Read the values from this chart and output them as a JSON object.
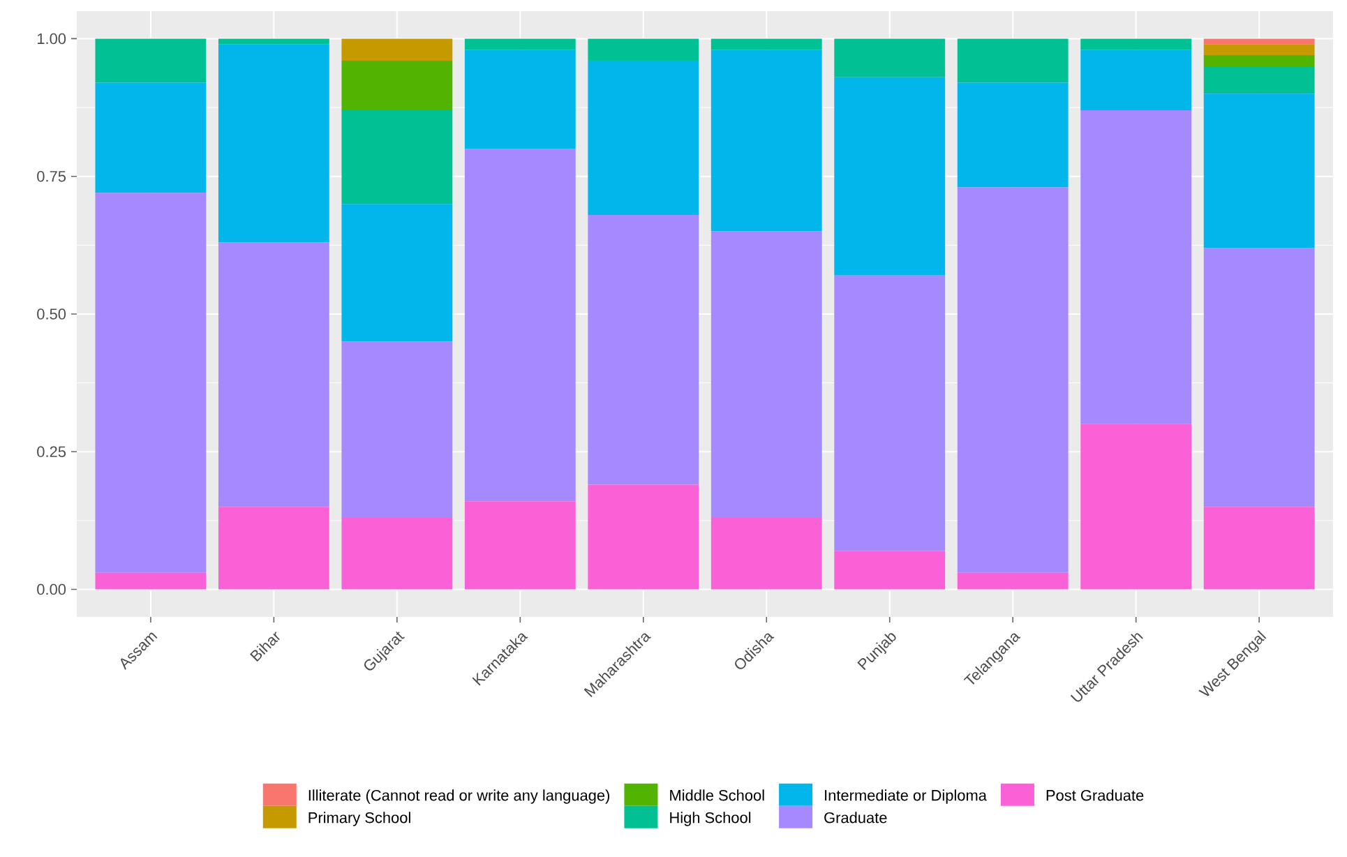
{
  "chart_data": {
    "type": "bar",
    "stacked": true,
    "categories": [
      "Assam",
      "Bihar",
      "Gujarat",
      "Karnataka",
      "Maharashtra",
      "Odisha",
      "Punjab",
      "Telangana",
      "Uttar Pradesh",
      "West Bengal"
    ],
    "series": [
      {
        "name": "Post Graduate",
        "color": "#fb61d7",
        "values": [
          0.03,
          0.15,
          0.13,
          0.16,
          0.19,
          0.13,
          0.07,
          0.03,
          0.3,
          0.15
        ]
      },
      {
        "name": "Graduate",
        "color": "#a58aff",
        "values": [
          0.69,
          0.48,
          0.32,
          0.64,
          0.49,
          0.52,
          0.5,
          0.7,
          0.57,
          0.47
        ]
      },
      {
        "name": "Intermediate or Diploma",
        "color": "#00b6eb",
        "values": [
          0.2,
          0.36,
          0.25,
          0.18,
          0.28,
          0.33,
          0.36,
          0.19,
          0.11,
          0.28
        ]
      },
      {
        "name": "High School",
        "color": "#00c094",
        "values": [
          0.08,
          0.01,
          0.17,
          0.02,
          0.04,
          0.02,
          0.07,
          0.08,
          0.02,
          0.05
        ]
      },
      {
        "name": "Middle School",
        "color": "#53b400",
        "values": [
          0,
          0,
          0.09,
          0,
          0,
          0,
          0,
          0,
          0,
          0.02
        ]
      },
      {
        "name": "Primary School",
        "color": "#c49a00",
        "values": [
          0,
          0,
          0.04,
          0,
          0,
          0,
          0,
          0,
          0,
          0.02
        ]
      },
      {
        "name": "Illiterate (Cannot read or write any language)",
        "color": "#f8766d",
        "values": [
          0,
          0,
          0,
          0,
          0,
          0,
          0,
          0,
          0,
          0.01
        ]
      }
    ],
    "ylim": [
      -0.05,
      1.05
    ],
    "yticks": [
      {
        "value": 0,
        "label": "0.00"
      },
      {
        "value": 0.25,
        "label": "0.25"
      },
      {
        "value": 0.5,
        "label": "0.50"
      },
      {
        "value": 0.75,
        "label": "0.75"
      },
      {
        "value": 1,
        "label": "1.00"
      }
    ],
    "grid": true,
    "legend": "bottom"
  }
}
